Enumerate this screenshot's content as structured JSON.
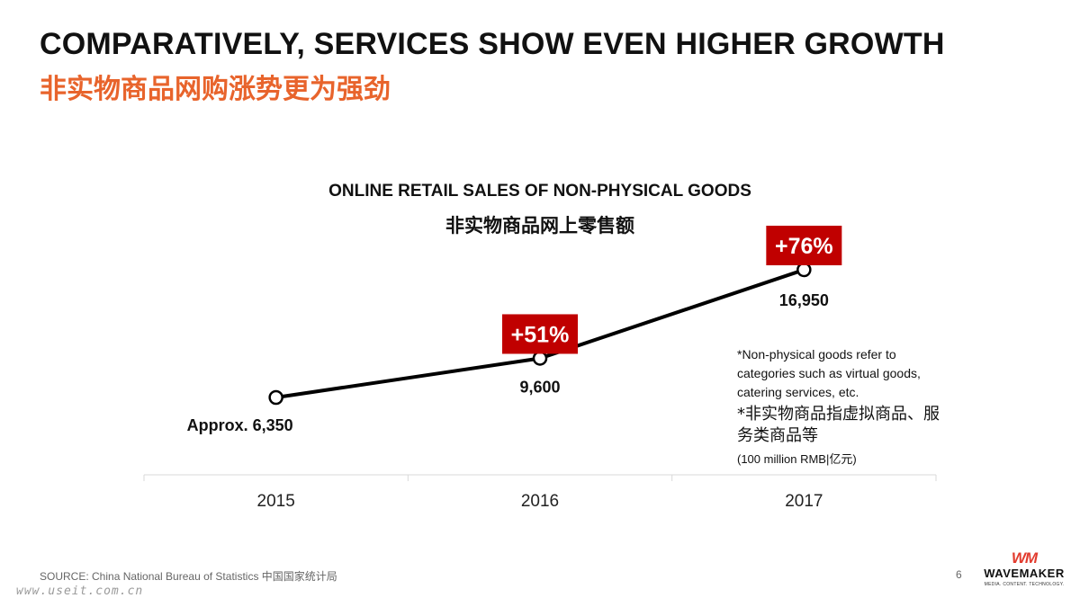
{
  "header": {
    "title_en": "COMPARATIVELY, SERVICES SHOW EVEN HIGHER GROWTH",
    "title_zh": "非实物商品网购涨势更为强劲"
  },
  "chart_data": {
    "type": "line",
    "title": "ONLINE RETAIL SALES OF NON-PHYSICAL GOODS",
    "subtitle": "非实物商品网上零售额",
    "categories": [
      "2015",
      "2016",
      "2017"
    ],
    "series": [
      {
        "values": [
          6350,
          9600,
          16950
        ],
        "data_labels": [
          "Approx. 6,350",
          "9,600",
          "16,950"
        ]
      }
    ],
    "growth_badges": [
      {
        "category": "2016",
        "label": "+51%"
      },
      {
        "category": "2017",
        "label": "+76%"
      }
    ],
    "unit": "(100 million RMB|亿元)",
    "grid": false,
    "colors": {
      "line": "#000000",
      "badge": "#c00000",
      "badge_text": "#ffffff",
      "axis": "#d9d9d9"
    }
  },
  "footnote": {
    "en": "*Non-physical goods refer to categories such as virtual goods, catering services, etc.",
    "zh": "*非实物商品指虚拟商品、服务类商品等",
    "unit": "(100 million RMB|亿元)"
  },
  "footer": {
    "source": "SOURCE: China National Bureau of Statistics 中国国家统计局",
    "page_number": "6",
    "watermark": "www.useit.com.cn"
  },
  "logo": {
    "mark": "WM",
    "name": "WAVEMAKER",
    "tagline": "MEDIA. CONTENT. TECHNOLOGY."
  }
}
